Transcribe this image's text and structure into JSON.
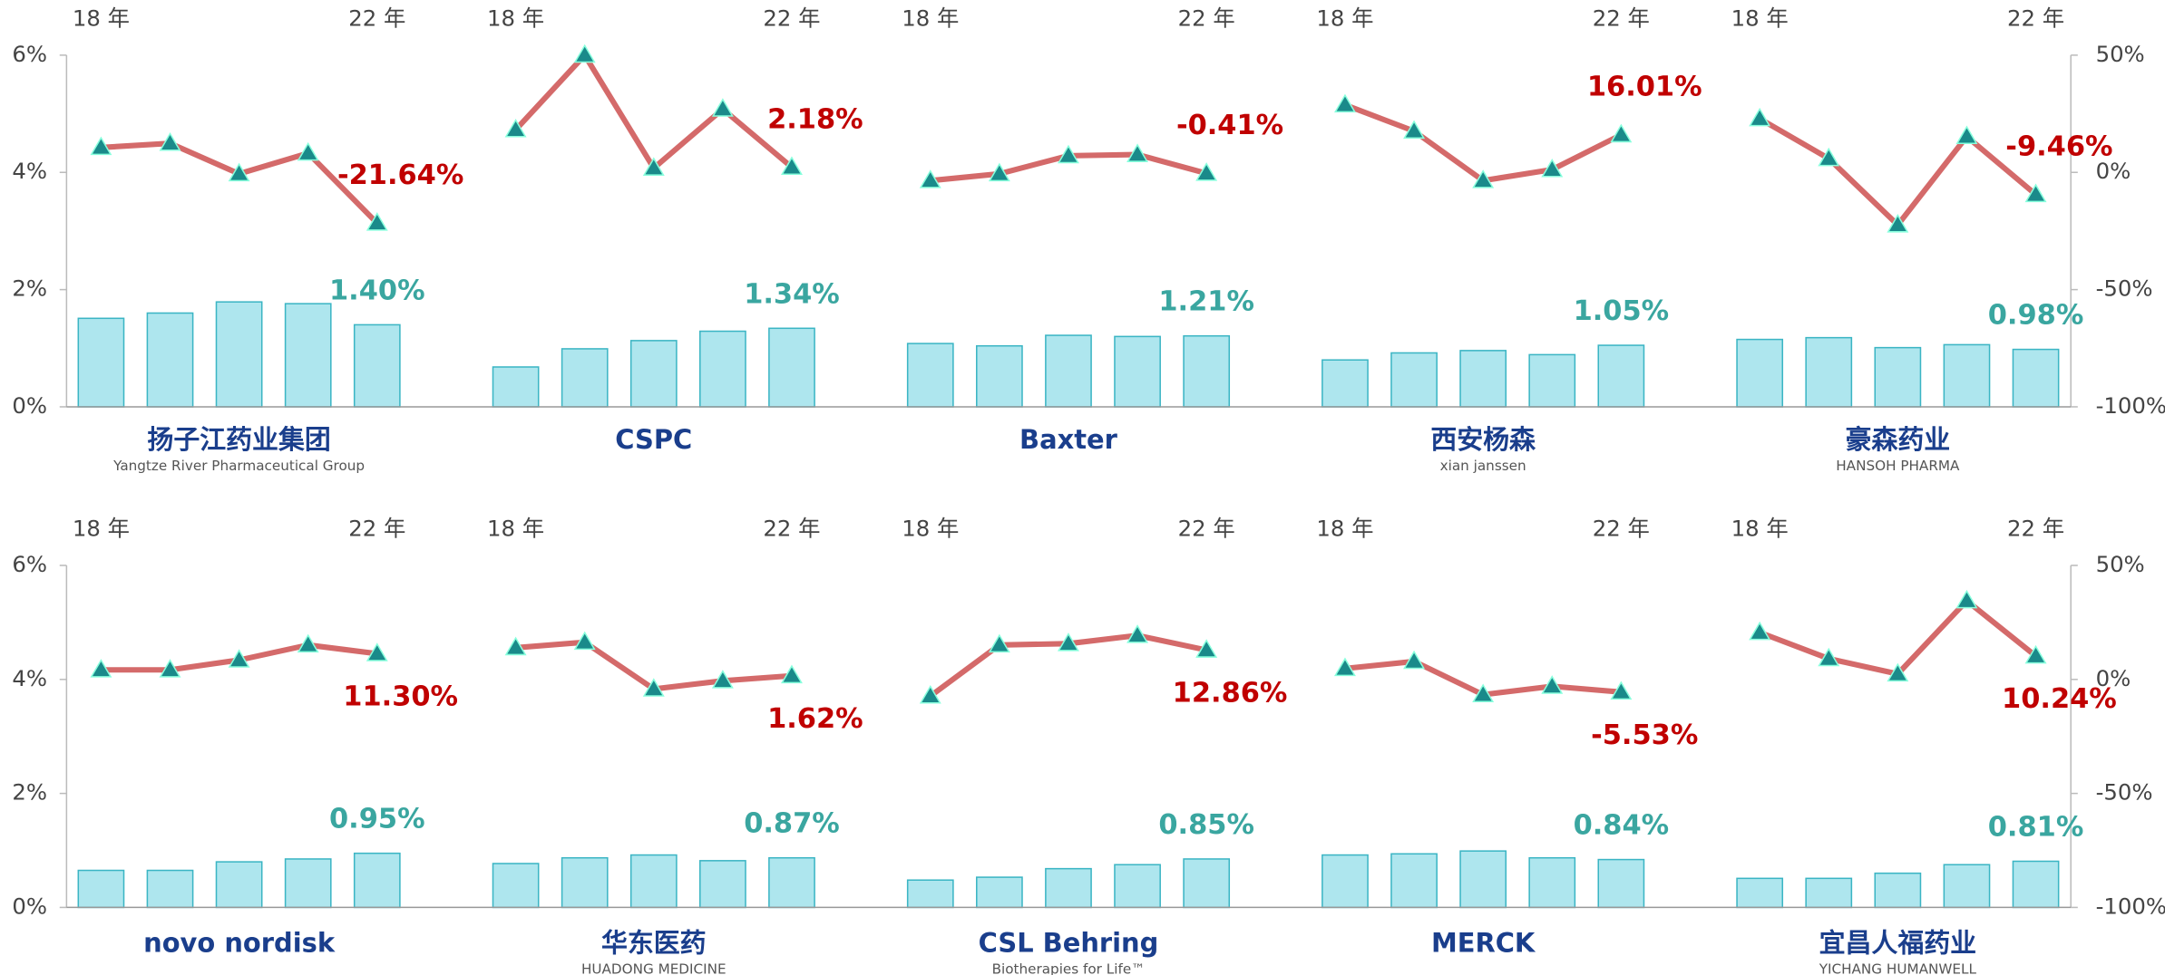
{
  "chart_data": [
    {
      "type": "bar-line",
      "ylim": [
        0,
        6
      ],
      "yticks": [
        {
          "value": 0,
          "label": "0%"
        },
        {
          "value": 2,
          "label": "2%"
        },
        {
          "value": 4,
          "label": "4%"
        },
        {
          "value": 6,
          "label": "6%"
        }
      ],
      "y2lim": [
        -100,
        50
      ],
      "y2ticks": [
        {
          "value": -100,
          "label": "-100%"
        },
        {
          "value": -50,
          "label": "-50%"
        },
        {
          "value": 0,
          "label": "0%"
        },
        {
          "value": 50,
          "label": "50%"
        }
      ],
      "bar_color": "#aee6ee",
      "line_color": "#d46a6a",
      "marker_color": "#1a8a8a",
      "panels": [
        {
          "categories": [
            "18 年",
            null,
            null,
            null,
            "22 年"
          ],
          "logo": [
            "扬子江药业集团",
            "Yangtze River Pharmaceutical Group"
          ],
          "series": [
            {
              "values": [
                1.51,
                1.6,
                1.79,
                1.76,
                1.4
              ],
              "value_labels": [
                null,
                null,
                null,
                null,
                "1.40%"
              ]
            },
            {
              "axis": "y2",
              "values": [
                10.6,
                12.4,
                -0.6,
                8.2,
                -21.64
              ],
              "value_labels": [
                null,
                null,
                null,
                null,
                "-21.64%"
              ]
            }
          ]
        },
        {
          "categories": [
            "18 年",
            null,
            null,
            null,
            "22 年"
          ],
          "logo": [
            "CSPC"
          ],
          "series": [
            {
              "values": [
                0.68,
                0.99,
                1.13,
                1.29,
                1.34
              ],
              "value_labels": [
                null,
                null,
                null,
                null,
                "1.34%"
              ]
            },
            {
              "axis": "y2",
              "values": [
                18.2,
                50,
                1.8,
                27,
                2.18
              ],
              "value_labels": [
                null,
                null,
                null,
                null,
                "2.18%"
              ]
            }
          ]
        },
        {
          "categories": [
            "18 年",
            null,
            null,
            null,
            "22 年"
          ],
          "logo": [
            "Baxter"
          ],
          "series": [
            {
              "values": [
                1.08,
                1.04,
                1.22,
                1.2,
                1.21
              ],
              "value_labels": [
                null,
                null,
                null,
                null,
                "1.21%"
              ]
            },
            {
              "axis": "y2",
              "values": [
                -3.5,
                -0.6,
                7.1,
                7.6,
                -0.41
              ],
              "value_labels": [
                null,
                null,
                null,
                null,
                "-0.41%"
              ]
            }
          ]
        },
        {
          "categories": [
            "18 年",
            null,
            null,
            null,
            "22 年"
          ],
          "logo": [
            "西安杨森",
            "xian janssen"
          ],
          "series": [
            {
              "values": [
                0.8,
                0.92,
                0.96,
                0.89,
                1.05
              ],
              "value_labels": [
                null,
                null,
                null,
                null,
                "1.05%"
              ]
            },
            {
              "axis": "y2",
              "values": [
                28.8,
                17.6,
                -3.5,
                1.2,
                16.01
              ],
              "value_labels": [
                null,
                null,
                null,
                null,
                "16.01%"
              ]
            }
          ]
        },
        {
          "categories": [
            "18 年",
            null,
            null,
            null,
            "22 年"
          ],
          "logo": [
            "豪森药业",
            "HANSOH PHARMA"
          ],
          "series": [
            {
              "values": [
                1.15,
                1.18,
                1.01,
                1.06,
                0.98
              ],
              "value_labels": [
                null,
                null,
                null,
                null,
                "0.98%"
              ]
            },
            {
              "axis": "y2",
              "values": [
                22.9,
                5.9,
                -22.4,
                15.3,
                -9.46
              ],
              "value_labels": [
                null,
                null,
                null,
                null,
                "-9.46%"
              ]
            }
          ]
        }
      ]
    },
    {
      "type": "bar-line",
      "ylim": [
        0,
        6
      ],
      "yticks": [
        {
          "value": 0,
          "label": "0%"
        },
        {
          "value": 2,
          "label": "2%"
        },
        {
          "value": 4,
          "label": "4%"
        },
        {
          "value": 6,
          "label": "6%"
        }
      ],
      "y2lim": [
        -100,
        50
      ],
      "y2ticks": [
        {
          "value": -100,
          "label": "-100%"
        },
        {
          "value": -50,
          "label": "-50%"
        },
        {
          "value": 0,
          "label": "0%"
        },
        {
          "value": 50,
          "label": "50%"
        }
      ],
      "bar_color": "#aee6ee",
      "line_color": "#d46a6a",
      "marker_color": "#1a8a8a",
      "panels": [
        {
          "categories": [
            "18 年",
            null,
            null,
            null,
            "22 年"
          ],
          "logo": [
            "novo nordisk"
          ],
          "series": [
            {
              "values": [
                0.65,
                0.65,
                0.8,
                0.85,
                0.95
              ],
              "value_labels": [
                null,
                null,
                null,
                null,
                "0.95%"
              ]
            },
            {
              "axis": "y2",
              "values": [
                4.2,
                4.2,
                8.5,
                15.1,
                11.3
              ],
              "value_labels": [
                null,
                null,
                null,
                null,
                "11.30%"
              ]
            }
          ]
        },
        {
          "categories": [
            "18 年",
            null,
            null,
            null,
            "22 年"
          ],
          "logo": [
            "华东医药",
            "HUADONG MEDICINE"
          ],
          "series": [
            {
              "values": [
                0.77,
                0.87,
                0.92,
                0.82,
                0.87
              ],
              "value_labels": [
                null,
                null,
                null,
                null,
                "0.87%"
              ]
            },
            {
              "axis": "y2",
              "values": [
                13.9,
                16.3,
                -4.2,
                -0.6,
                1.62
              ],
              "value_labels": [
                null,
                null,
                null,
                null,
                "1.62%"
              ]
            }
          ]
        },
        {
          "categories": [
            "18 年",
            null,
            null,
            null,
            "22 年"
          ],
          "logo": [
            "CSL Behring",
            "Biotherapies for Life™"
          ],
          "series": [
            {
              "values": [
                0.48,
                0.53,
                0.68,
                0.75,
                0.85
              ],
              "value_labels": [
                null,
                null,
                null,
                null,
                "0.85%"
              ]
            },
            {
              "axis": "y2",
              "values": [
                -7.3,
                15.1,
                15.7,
                19.3,
                12.86
              ],
              "value_labels": [
                null,
                null,
                null,
                null,
                "12.86%"
              ]
            }
          ]
        },
        {
          "categories": [
            "18 年",
            null,
            null,
            null,
            "22 年"
          ],
          "logo": [
            "MERCK"
          ],
          "series": [
            {
              "values": [
                0.92,
                0.94,
                0.99,
                0.87,
                0.84
              ],
              "value_labels": [
                null,
                null,
                null,
                null,
                "0.84%"
              ]
            },
            {
              "axis": "y2",
              "values": [
                4.8,
                7.9,
                -6.7,
                -3,
                -5.53
              ],
              "value_labels": [
                null,
                null,
                null,
                null,
                "-5.53%"
              ]
            }
          ]
        },
        {
          "categories": [
            "18 年",
            null,
            null,
            null,
            "22 年"
          ],
          "logo": [
            "宜昌人福药业",
            "YICHANG HUMANWELL"
          ],
          "series": [
            {
              "values": [
                0.51,
                0.51,
                0.6,
                0.75,
                0.81
              ],
              "value_labels": [
                null,
                null,
                null,
                null,
                "0.81%"
              ]
            },
            {
              "axis": "y2",
              "values": [
                20.6,
                9.1,
                2.4,
                34.5,
                10.24
              ],
              "value_labels": [
                null,
                null,
                null,
                null,
                "10.24%"
              ]
            }
          ]
        }
      ]
    }
  ]
}
